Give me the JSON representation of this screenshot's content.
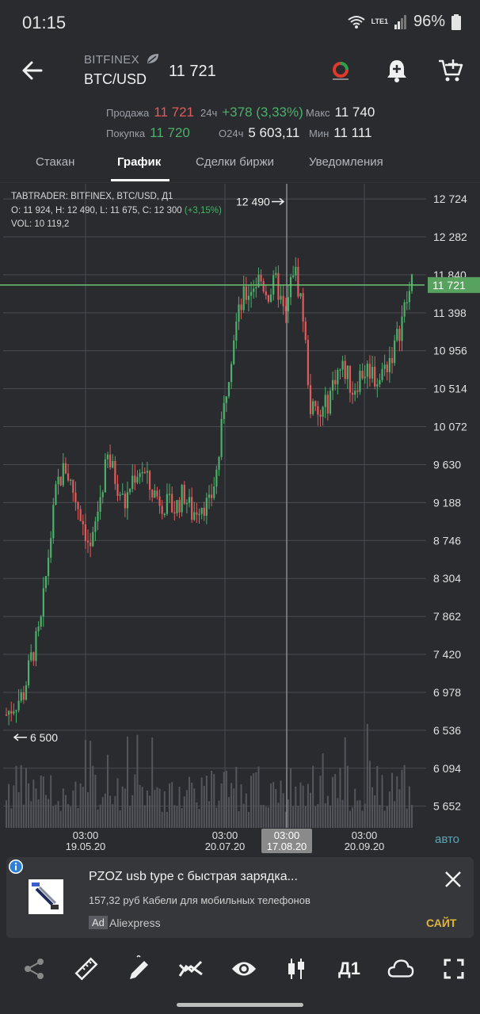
{
  "status_bar": {
    "time": "01:15",
    "battery": "96%",
    "network": "LTE1"
  },
  "header": {
    "exchange": "BITFINEX",
    "pair": "BTC/USD",
    "price": "11 721"
  },
  "stats": {
    "sell_label": "Продажа",
    "sell_value": "11 721",
    "buy_label": "Покупка",
    "buy_value": "11 720",
    "change_label": "24ч",
    "change_value": "+378 (3,33%)",
    "volume_label": "O24ч",
    "volume_value": "5 603,11",
    "max_label": "Макс",
    "max_value": "11 740",
    "min_label": "Мин",
    "min_value": "11 111"
  },
  "tabs": [
    {
      "label": "Стакан"
    },
    {
      "label": "График"
    },
    {
      "label": "Сделки биржи"
    },
    {
      "label": "Уведомления"
    }
  ],
  "chart_info": {
    "line1": "TABTRADER: BITFINEX, BTC/USD, Д1",
    "ohlc": "O: 11 924, H: 12 490, L: 11 675, C: 12 300",
    "pct": "(+3,15%)",
    "vol": "VOL: 10 119,2"
  },
  "chart_data": {
    "type": "candlestick",
    "ylim": [
      5400,
      12900
    ],
    "y_ticks": [
      "12 724",
      "12 282",
      "11 840",
      "11 398",
      "10 956",
      "10 514",
      "10 072",
      "9 630",
      "9 188",
      "8 746",
      "8 304",
      "7 862",
      "7 420",
      "6 978",
      "6 536",
      "6 094",
      "5 652"
    ],
    "y_tick_values": [
      12724,
      12282,
      11840,
      11398,
      10956,
      10514,
      10072,
      9630,
      9188,
      8746,
      8304,
      7862,
      7420,
      6978,
      6536,
      6094,
      5652
    ],
    "x_ticks": [
      {
        "time": "03:00",
        "date": "19.05.20"
      },
      {
        "time": "03:00",
        "date": "20.07.20"
      },
      {
        "time": "03:00",
        "date": "17.08.20"
      },
      {
        "time": "03:00",
        "date": "20.09.20"
      }
    ],
    "current_price": 11721,
    "current_price_label": "11 721",
    "high_marker": {
      "value": 12490,
      "label": "12 490"
    },
    "low_marker": {
      "value": 6500,
      "label": "6 500"
    },
    "close_series": [
      6720,
      6850,
      6950,
      7400,
      7700,
      8600,
      9400,
      9600,
      9300,
      9000,
      8600,
      9200,
      9700,
      9450,
      9150,
      9500,
      9600,
      9350,
      9250,
      9150,
      9120,
      9300,
      9050,
      9200,
      9140,
      9600,
      10500,
      11200,
      11550,
      11700,
      11800,
      11620,
      11750,
      11300,
      11950,
      11500,
      10300,
      10150,
      10350,
      10700,
      10750,
      10500,
      10700,
      10750,
      10600,
      10800,
      11000,
      11400,
      11721
    ]
  },
  "auto_label": "авто",
  "ad": {
    "title": "PZOZ usb type с быстрая зарядка...",
    "desc": "157,32 руб Кабели для мобильных телефонов",
    "badge": "Ad",
    "brand": "Aliexpress",
    "cta": "САЙТ"
  },
  "toolbar": {
    "timeframe": "Д1"
  },
  "colors": {
    "up": "#4caf6a",
    "down": "#e05b5b",
    "background": "#2a2b2f",
    "accent": "#5aa7b8"
  }
}
